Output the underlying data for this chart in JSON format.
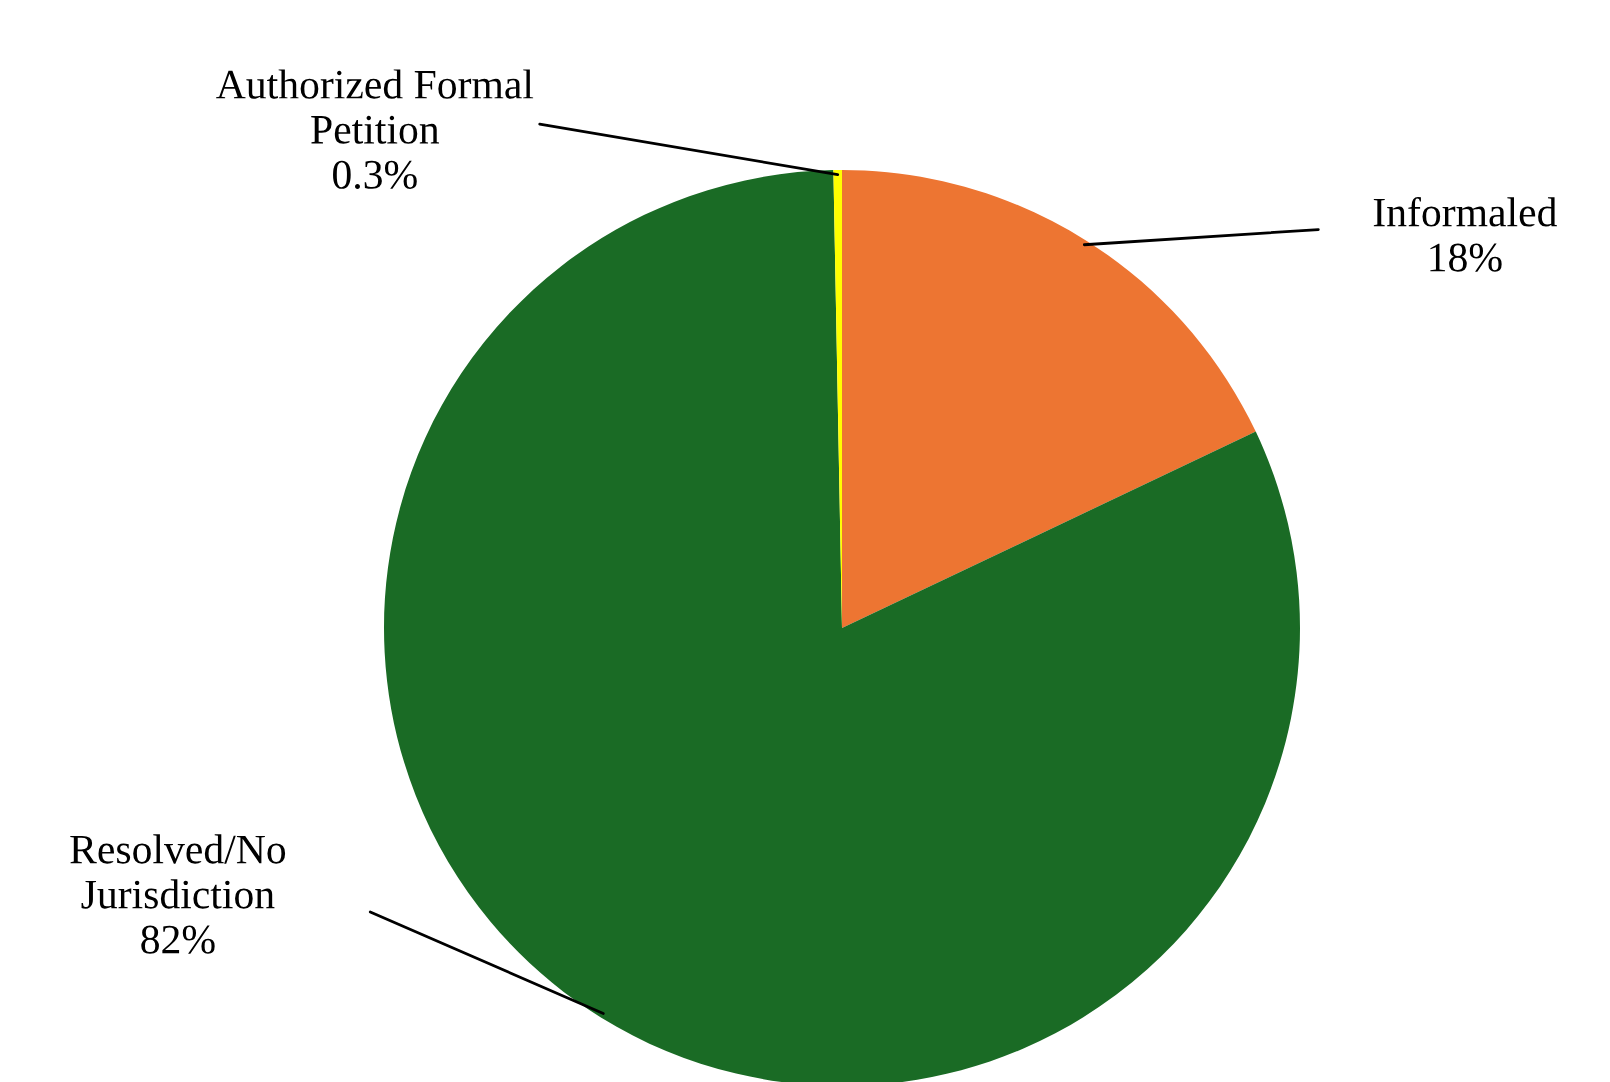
{
  "chart_data": {
    "type": "pie",
    "categories": [
      "Informaled",
      "Resolved/No\nJurisdiction",
      "Authorized Formal\nPetition"
    ],
    "values": [
      18,
      82,
      0.3
    ],
    "value_labels": [
      "18%",
      "82%",
      "0.3%"
    ],
    "colors": [
      "#ed7532",
      "#1a6b25",
      "#ffff00"
    ]
  }
}
